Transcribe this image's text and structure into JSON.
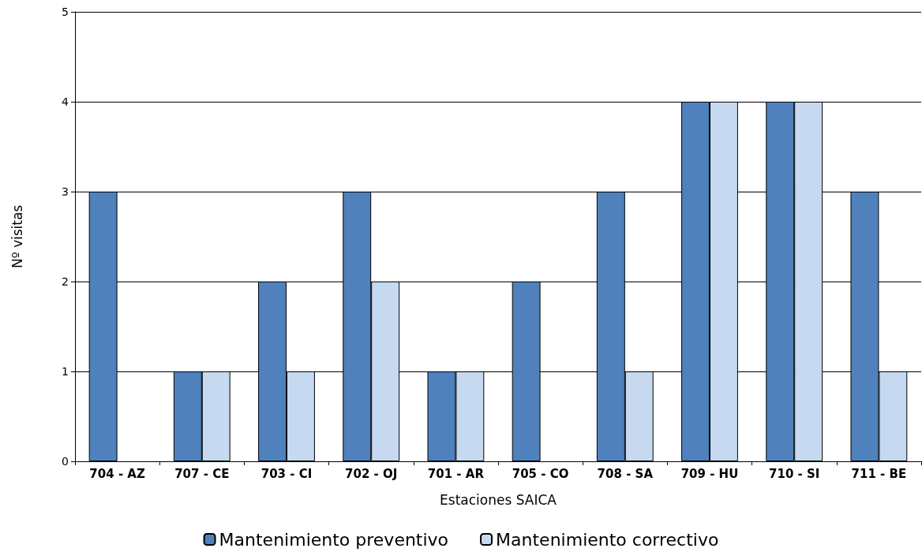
{
  "chart_data": {
    "type": "bar",
    "xlabel": "Estaciones SAICA",
    "ylabel": "Nº visitas",
    "categories": [
      "704 - AZ",
      "707 - CE",
      "703 - CI",
      "702 - OJ",
      "701 - AR",
      "705 - CO",
      "708 - SA",
      "709 - HU",
      "710 - SI",
      "711 - BE"
    ],
    "series": [
      {
        "name": "Mantenimiento preventivo",
        "color": "#4f81bd",
        "values": [
          3,
          1,
          2,
          3,
          1,
          2,
          3,
          4,
          4,
          3
        ]
      },
      {
        "name": "Mantenimiento correctivo",
        "color": "#c6d9f0",
        "values": [
          0,
          1,
          1,
          2,
          1,
          0,
          1,
          4,
          4,
          1
        ]
      }
    ],
    "ylim": [
      0,
      5
    ],
    "yticks": [
      0,
      1,
      2,
      3,
      4,
      5
    ],
    "grid": "y",
    "legend": "bottom"
  }
}
